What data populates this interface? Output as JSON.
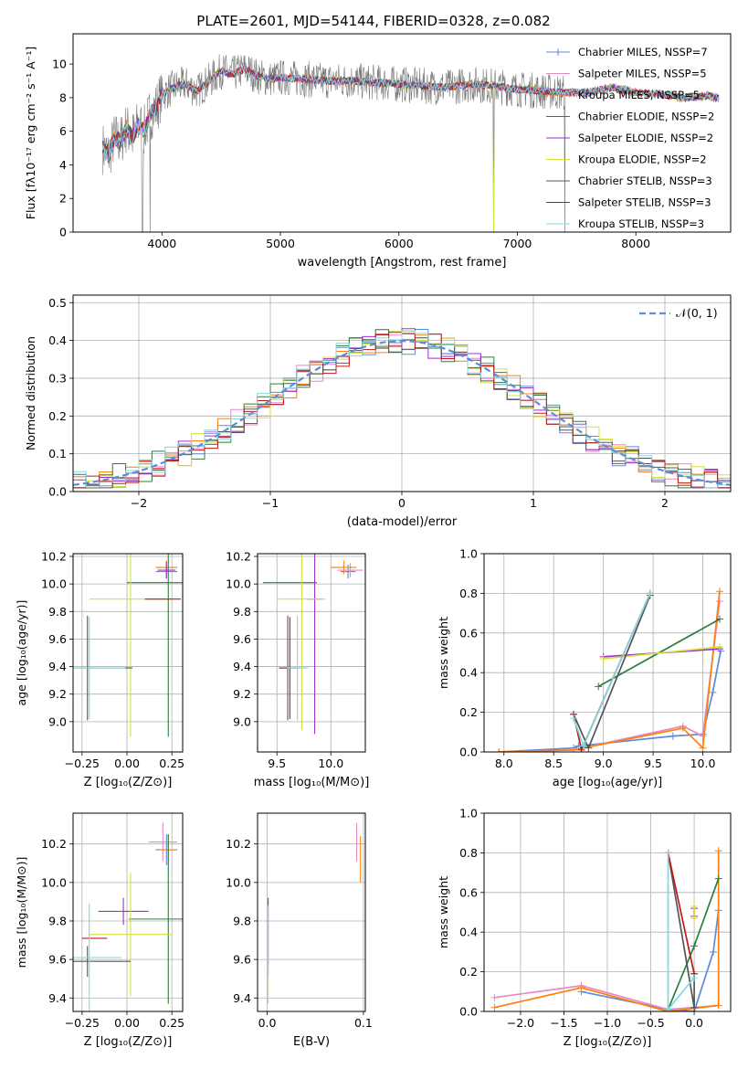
{
  "colors": [
    "#5b8bd9",
    "#e78ac3",
    "#ff7f0e",
    "#2f7d3c",
    "#9b30d0",
    "#d4e03a",
    "#555555",
    "#c01818",
    "#82d8e0"
  ],
  "chart_data": [
    {
      "type": "line",
      "title": "PLATE=2601, MJD=54144, FIBERID=0328, z=0.082",
      "xlabel": "wavelength [Angstrom, rest frame]",
      "ylabel": "Flux [fλ10⁻¹⁷ erg cm⁻² s⁻¹ A⁻¹]",
      "xlim": [
        3250,
        8800
      ],
      "ylim": [
        0,
        11.8
      ],
      "xticks": [
        4000,
        5000,
        6000,
        7000,
        8000
      ],
      "yticks": [
        0,
        2,
        4,
        6,
        8,
        10
      ],
      "grid": false,
      "legend_position": "top-right",
      "spectrum": {
        "name": "data",
        "x": [
          3500,
          3550,
          3600,
          3650,
          3700,
          3750,
          3800,
          3850,
          3900,
          3950,
          4000,
          4100,
          4200,
          4300,
          4400,
          4500,
          4600,
          4700,
          4800,
          4900,
          5000,
          5200,
          5400,
          5600,
          5800,
          6000,
          6200,
          6400,
          6600,
          6800,
          7000,
          7200,
          7400,
          7600,
          7800,
          8000,
          8200,
          8400,
          8600,
          8700
        ],
        "y": [
          5.0,
          4.6,
          5.6,
          5.4,
          6.2,
          5.6,
          6.4,
          6.0,
          7.0,
          7.4,
          8.2,
          8.6,
          8.8,
          8.4,
          9.0,
          9.6,
          9.4,
          9.7,
          9.3,
          9.1,
          9.2,
          9.1,
          9.0,
          9.0,
          8.9,
          8.8,
          8.7,
          8.6,
          8.8,
          8.7,
          8.5,
          8.4,
          8.3,
          8.3,
          8.6,
          8.3,
          8.2,
          8.0,
          8.1,
          8.0
        ]
      },
      "series": [
        {
          "name": "Chabrier MILES, N_SSP=7"
        },
        {
          "name": "Salpeter MILES, N_SSP=5"
        },
        {
          "name": "Kroupa MILES, N_SSP=5"
        },
        {
          "name": "Chabrier ELODIE, N_SSP=2"
        },
        {
          "name": "Salpeter ELODIE, N_SSP=2"
        },
        {
          "name": "Kroupa ELODIE, N_SSP=2"
        },
        {
          "name": "Chabrier STELIB, N_SSP=3"
        },
        {
          "name": "Salpeter STELIB, N_SSP=3"
        },
        {
          "name": "Kroupa STELIB, N_SSP=3"
        }
      ]
    },
    {
      "type": "bar",
      "subtype": "step-histogram",
      "xlabel": "(data-model)/error",
      "ylabel": "Normed distribution",
      "xlim": [
        -2.5,
        2.5
      ],
      "ylim": [
        0,
        0.52
      ],
      "xticks": [
        -2,
        -1,
        0,
        1,
        2
      ],
      "yticks": [
        0.0,
        0.1,
        0.2,
        0.3,
        0.4,
        0.5
      ],
      "grid": true,
      "legend_position": "top-right",
      "legend": [
        "𝒩(0, 1)"
      ],
      "bin_width": 0.1,
      "bin_start": -2.5,
      "normal_curve": {
        "mean": 0,
        "sigma": 1,
        "name": "𝒩(0, 1)"
      }
    },
    {
      "type": "scatter",
      "subtype": "errorbar",
      "xlabel": "Z [log₁₀(Z/Z⊙)]",
      "ylabel": "age  [log₁₀(age/yr)]",
      "xlim": [
        -0.3,
        0.31
      ],
      "ylim": [
        8.78,
        10.22
      ],
      "xticks": [
        -0.25,
        0.0,
        0.25
      ],
      "yticks": [
        9.0,
        9.2,
        9.4,
        9.6,
        9.8,
        10.0,
        10.2
      ],
      "grid": true,
      "points": [
        {
          "s": 0,
          "x": 0.22,
          "y": 10.09,
          "xerr": 0.06,
          "yerr": 0.05
        },
        {
          "s": 1,
          "x": 0.22,
          "y": 10.12,
          "xerr": 0.06,
          "yerr": 0.05
        },
        {
          "s": 2,
          "x": 0.22,
          "y": 10.12,
          "xerr": 0.06,
          "yerr": 0.05
        },
        {
          "s": 3,
          "x": 0.23,
          "y": 10.01,
          "xerr": 0.23,
          "yerr": 1.12
        },
        {
          "s": 4,
          "x": 0.22,
          "y": 10.1,
          "xerr": 0.05,
          "yerr": 0.06
        },
        {
          "s": 5,
          "x": 0.02,
          "y": 9.89,
          "xerr": 0.23,
          "yerr": 1.0
        },
        {
          "s": 6,
          "x": -0.22,
          "y": 9.39,
          "xerr": 0.25,
          "yerr": 0.38
        },
        {
          "s": 7,
          "x": 0.2,
          "y": 9.89,
          "xerr": 0.1,
          "yerr": 0.0
        },
        {
          "s": 8,
          "x": -0.21,
          "y": 9.39,
          "xerr": 0.2,
          "yerr": 0.37
        }
      ]
    },
    {
      "type": "scatter",
      "subtype": "errorbar",
      "xlabel": "mass [log₁₀(M/M⊙)]",
      "ylabel": "",
      "xlim": [
        9.32,
        10.32
      ],
      "ylim": [
        8.78,
        10.22
      ],
      "xticks": [
        9.5,
        10.0
      ],
      "yticks": [
        9.0,
        9.2,
        9.4,
        9.6,
        9.8,
        10.0,
        10.2
      ],
      "grid": true,
      "points": [
        {
          "s": 0,
          "x": 10.16,
          "y": 10.09,
          "xerr": 0.07,
          "yerr": 0.05
        },
        {
          "s": 1,
          "x": 10.18,
          "y": 10.1,
          "xerr": 0.12,
          "yerr": 0.05
        },
        {
          "s": 2,
          "x": 10.12,
          "y": 10.12,
          "xerr": 0.12,
          "yerr": 0.05
        },
        {
          "s": 3,
          "x": 9.62,
          "y": 10.01,
          "xerr": 0.25,
          "yerr": 0.0
        },
        {
          "s": 4,
          "x": 9.85,
          "y": 9.89,
          "xerr": 0.07,
          "yerr": 0.98
        },
        {
          "s": 5,
          "x": 9.73,
          "y": 9.89,
          "xerr": 0.22,
          "yerr": 0.95
        },
        {
          "s": 6,
          "x": 9.6,
          "y": 9.39,
          "xerr": 0.08,
          "yerr": 0.38
        },
        {
          "s": 7,
          "x": 9.62,
          "y": 9.39,
          "xerr": 0.1,
          "yerr": 0.37
        },
        {
          "s": 8,
          "x": 9.69,
          "y": 9.39,
          "xerr": 0.1,
          "yerr": 0.38
        }
      ]
    },
    {
      "type": "line",
      "xlabel": "age  [log₁₀(age/yr)]",
      "ylabel": "mass weight",
      "xlim": [
        7.8,
        10.28
      ],
      "ylim": [
        0,
        1.0
      ],
      "xticks": [
        8.0,
        8.5,
        9.0,
        9.5,
        10.0
      ],
      "yticks": [
        0.0,
        0.2,
        0.4,
        0.6,
        0.8,
        1.0
      ],
      "grid": true,
      "series": [
        {
          "s": 0,
          "x": [
            7.95,
            8.7,
            8.75,
            9.7,
            10.0,
            10.1,
            10.18
          ],
          "y": [
            0.0,
            0.02,
            0.03,
            0.08,
            0.09,
            0.3,
            0.51
          ]
        },
        {
          "s": 1,
          "x": [
            7.95,
            8.7,
            9.8,
            10.0,
            10.17
          ],
          "y": [
            0.0,
            0.01,
            0.13,
            0.08,
            0.76
          ]
        },
        {
          "s": 2,
          "x": [
            7.95,
            8.7,
            9.8,
            10.0,
            10.17
          ],
          "y": [
            0.0,
            0.01,
            0.12,
            0.02,
            0.81
          ]
        },
        {
          "s": 3,
          "x": [
            8.95,
            10.17
          ],
          "y": [
            0.33,
            0.67
          ]
        },
        {
          "s": 4,
          "x": [
            9.0,
            10.17
          ],
          "y": [
            0.48,
            0.52
          ]
        },
        {
          "s": 5,
          "x": [
            9.0,
            10.17
          ],
          "y": [
            0.47,
            0.53
          ]
        },
        {
          "s": 6,
          "x": [
            8.7,
            8.85,
            9.47
          ],
          "y": [
            0.19,
            0.02,
            0.79
          ]
        },
        {
          "s": 7,
          "x": [
            8.7,
            8.78,
            9.47
          ],
          "y": [
            0.19,
            0.01,
            0.8
          ]
        },
        {
          "s": 8,
          "x": [
            8.7,
            8.8,
            9.47
          ],
          "y": [
            0.17,
            0.03,
            0.8
          ]
        }
      ]
    },
    {
      "type": "scatter",
      "subtype": "errorbar",
      "xlabel": "Z [log₁₀(Z/Z⊙)]",
      "ylabel": "mass [log₁₀(M/M⊙)]",
      "xlim": [
        -0.3,
        0.31
      ],
      "ylim": [
        9.33,
        10.36
      ],
      "xticks": [
        -0.25,
        0.0,
        0.25
      ],
      "yticks": [
        9.4,
        9.6,
        9.8,
        10.0,
        10.2
      ],
      "grid": true,
      "points": [
        {
          "s": 0,
          "x": 0.22,
          "y": 10.17,
          "xerr": 0.06,
          "yerr": 0.08
        },
        {
          "s": 1,
          "x": 0.2,
          "y": 10.21,
          "xerr": 0.08,
          "yerr": 0.1
        },
        {
          "s": 2,
          "x": 0.23,
          "y": 10.17,
          "xerr": 0.05,
          "yerr": 0.08
        },
        {
          "s": 3,
          "x": 0.23,
          "y": 9.81,
          "xerr": 0.22,
          "yerr": 0.44
        },
        {
          "s": 4,
          "x": -0.02,
          "y": 9.85,
          "xerr": 0.14,
          "yerr": 0.07
        },
        {
          "s": 5,
          "x": 0.02,
          "y": 9.73,
          "xerr": 0.23,
          "yerr": 0.32
        },
        {
          "s": 6,
          "x": -0.22,
          "y": 9.59,
          "xerr": 0.24,
          "yerr": 0.08
        },
        {
          "s": 7,
          "x": -0.18,
          "y": 9.71,
          "xerr": 0.07,
          "yerr": 0.0
        },
        {
          "s": 8,
          "x": -0.21,
          "y": 9.61,
          "xerr": 0.18,
          "yerr": 0.28
        }
      ]
    },
    {
      "type": "scatter",
      "subtype": "errorbar",
      "xlabel": "E(B-V)",
      "ylabel": "",
      "xlim": [
        -0.01,
        0.102
      ],
      "ylim": [
        9.33,
        10.36
      ],
      "xticks": [
        0.0,
        0.1
      ],
      "yticks": [
        9.4,
        9.6,
        9.8,
        10.0,
        10.2
      ],
      "grid": true,
      "points": [
        {
          "s": 1,
          "x": 0.093,
          "y": 10.21,
          "xerr": 0.0,
          "yerr": 0.1
        },
        {
          "s": 2,
          "x": 0.097,
          "y": 10.12,
          "xerr": 0.0,
          "yerr": 0.12
        },
        {
          "s": 4,
          "x": 0.001,
          "y": 9.74,
          "xerr": 0.0,
          "yerr": 0.18
        },
        {
          "s": 5,
          "x": 0.001,
          "y": 9.47,
          "xerr": 0.0,
          "yerr": 0.1
        },
        {
          "s": 8,
          "x": 0.001,
          "y": 9.7,
          "xerr": 0.0,
          "yerr": 0.18
        }
      ]
    },
    {
      "type": "line",
      "xlabel": "Z [log₁₀(Z/Z⊙)]",
      "ylabel": "mass weight",
      "xlim": [
        -2.42,
        0.42
      ],
      "ylim": [
        0,
        1.0
      ],
      "xticks": [
        -2.0,
        -1.5,
        -1.0,
        -0.5,
        0.0
      ],
      "yticks": [
        0.0,
        0.2,
        0.4,
        0.6,
        0.8,
        1.0
      ],
      "grid": true,
      "series": [
        {
          "s": 0,
          "x": [
            -1.3,
            -0.3,
            0.0,
            0.22,
            0.28
          ],
          "y": [
            0.1,
            0.01,
            0.0,
            0.3,
            0.51
          ]
        },
        {
          "s": 1,
          "x": [
            -2.3,
            -1.3,
            -0.3,
            0.28
          ],
          "y": [
            0.07,
            0.13,
            0.01,
            0.03
          ]
        },
        {
          "s": 2,
          "x": [
            -2.3,
            -1.3,
            -0.3,
            0.28,
            0.28
          ],
          "y": [
            0.02,
            0.12,
            0.0,
            0.03,
            0.81
          ]
        },
        {
          "s": 3,
          "x": [
            -0.3,
            0.0,
            0.28
          ],
          "y": [
            0.01,
            0.33,
            0.67
          ]
        },
        {
          "s": 4,
          "x": [
            0.0,
            0.0
          ],
          "y": [
            0.48,
            0.52
          ]
        },
        {
          "s": 5,
          "x": [
            0.0,
            0.0
          ],
          "y": [
            0.47,
            0.53
          ]
        },
        {
          "s": 6,
          "x": [
            -0.3,
            0.0,
            0.0
          ],
          "y": [
            0.8,
            0.02,
            0.19
          ]
        },
        {
          "s": 7,
          "x": [
            -0.3,
            0.0
          ],
          "y": [
            0.8,
            0.19
          ]
        },
        {
          "s": 8,
          "x": [
            -0.3,
            -0.3,
            0.0
          ],
          "y": [
            0.8,
            0.01,
            0.17
          ]
        }
      ]
    }
  ]
}
